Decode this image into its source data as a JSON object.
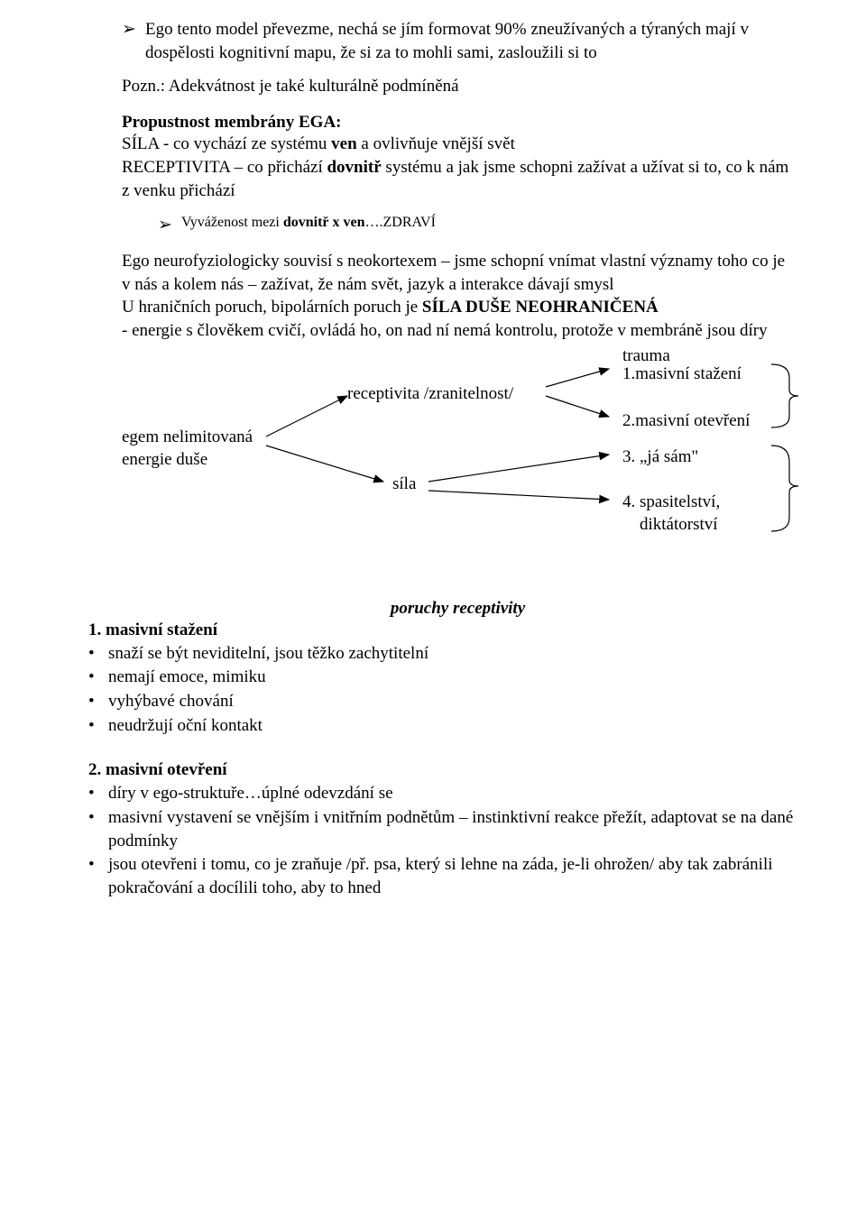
{
  "top_bullet": "Ego tento model převezme, nechá se jím formovat 90% zneužívaných a týraných mají v dospělosti kognitivní mapu, že si za to mohli sami, zasloužili si to",
  "pozn": "Pozn.: Adekvátnost je také kulturálně podmíněná",
  "membrana_heading": "Propustnost membrány EGA",
  "membrana_para_html": "SÍLA - co vychází ze systému <b>ven</b> a ovlivňuje vnější svět<br>RECEPTIVITA – co přichází <b>dovnitř</b> systému a jak jsme schopni zažívat a užívat si to, co k nám z venku přichází",
  "vyvazenost_html": "Vyváženost mezi <b>dovnitř x ven</b>….ZDRAVÍ",
  "ego_block_html": "Ego neurofyziologicky souvisí s neokortexem – jsme schopní vnímat vlastní významy toho co je v nás a kolem nás – zažívat, že nám svět, jazyk a interakce dávají smysl<br>U hraničních poruch, bipolárních poruch je <b>SÍLA DUŠE NEOHRANIČENÁ</b><br>- energie s člověkem cvičí, ovládá ho, on nad ní nemá kontrolu, protože v membráně jsou díry",
  "diagram": {
    "left_label": "egem nelimitovaná\nenergie duše",
    "mid_top": "receptivita /zranitelnost/",
    "mid_bottom": "síla",
    "right_trauma": "trauma",
    "right_1": "1.masivní stažení",
    "right_2": "2.masivní otevření",
    "right_3": "3. „já sám\"",
    "right_4": "4. spasitelství,\n    diktátorství",
    "colors": {
      "line": "#000000",
      "brace": "#000000"
    }
  },
  "poruchy_title": "poruchy receptivity",
  "section1_heading": "1.  masivní stažení",
  "section1_items": [
    "snaží se být neviditelní, jsou těžko zachytitelní",
    "nemají emoce, mimiku",
    "vyhýbavé chování",
    "neudržují oční kontakt"
  ],
  "section2_heading": "2.  masivní otevření",
  "section2_items": [
    "díry v ego-struktuře…úplné odevzdání se",
    "masivní vystavení se vnějším i vnitřním podnětům – instinktivní reakce přežít, adaptovat se na dané podmínky",
    "jsou otevřeni i tomu, co je zraňuje /př. psa, který si lehne na záda, je-li ohrožen/ aby tak zabránili pokračování a docílili toho, aby to hned"
  ]
}
